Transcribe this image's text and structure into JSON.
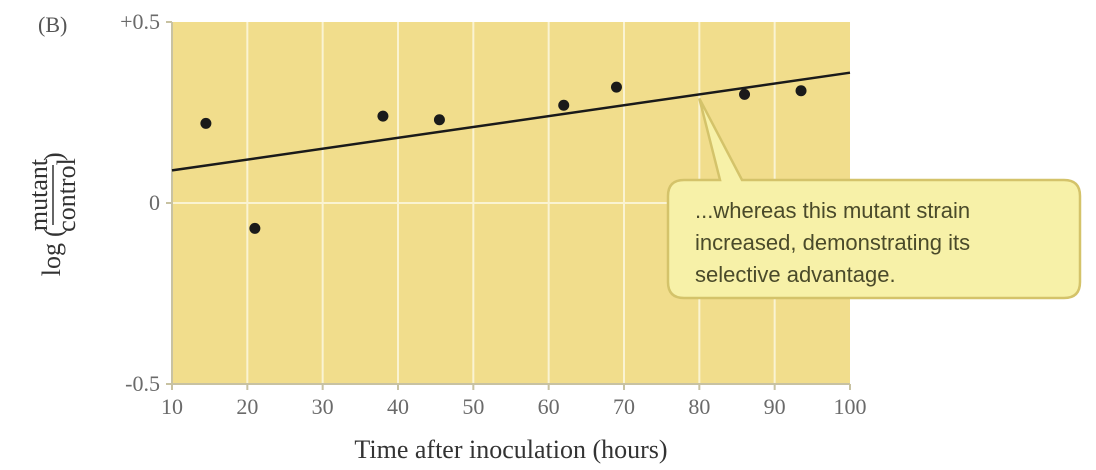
{
  "chart_data": {
    "type": "scatter",
    "panel_label": "(B)",
    "xlabel": "Time after inoculation (hours)",
    "ylabel": {
      "prefix": "log",
      "numerator": "mutant",
      "denominator": "control"
    },
    "xlim": [
      10,
      100
    ],
    "ylim": [
      -0.5,
      0.5
    ],
    "x_ticks": [
      "10",
      "20",
      "30",
      "40",
      "50",
      "60",
      "70",
      "80",
      "90",
      "100"
    ],
    "y_ticks": [
      {
        "value": 0.5,
        "label": "+0.5"
      },
      {
        "value": 0,
        "label": "0"
      },
      {
        "value": -0.5,
        "label": "-0.5"
      }
    ],
    "grid": true,
    "points": [
      {
        "x": 14.5,
        "y": 0.22
      },
      {
        "x": 21,
        "y": -0.07
      },
      {
        "x": 38,
        "y": 0.24
      },
      {
        "x": 45.5,
        "y": 0.23
      },
      {
        "x": 62,
        "y": 0.27
      },
      {
        "x": 69,
        "y": 0.32
      },
      {
        "x": 86,
        "y": 0.3
      },
      {
        "x": 93.5,
        "y": 0.31
      }
    ],
    "trendline": {
      "x": [
        10,
        100
      ],
      "y": [
        0.09,
        0.36
      ]
    },
    "annotation": {
      "lines": [
        "...whereas this mutant strain",
        "increased, demonstrating its",
        "selective advantage."
      ],
      "points_to": {
        "x": 80,
        "y": 0.3
      }
    },
    "colors": {
      "plot_background": "#f1dd8c",
      "gridline": "#faf3d2",
      "points": "#1a1a1a",
      "trendline": "#1a1a1a",
      "callout_fill": "#f7f1a8",
      "callout_stroke": "#d4c36a"
    }
  }
}
